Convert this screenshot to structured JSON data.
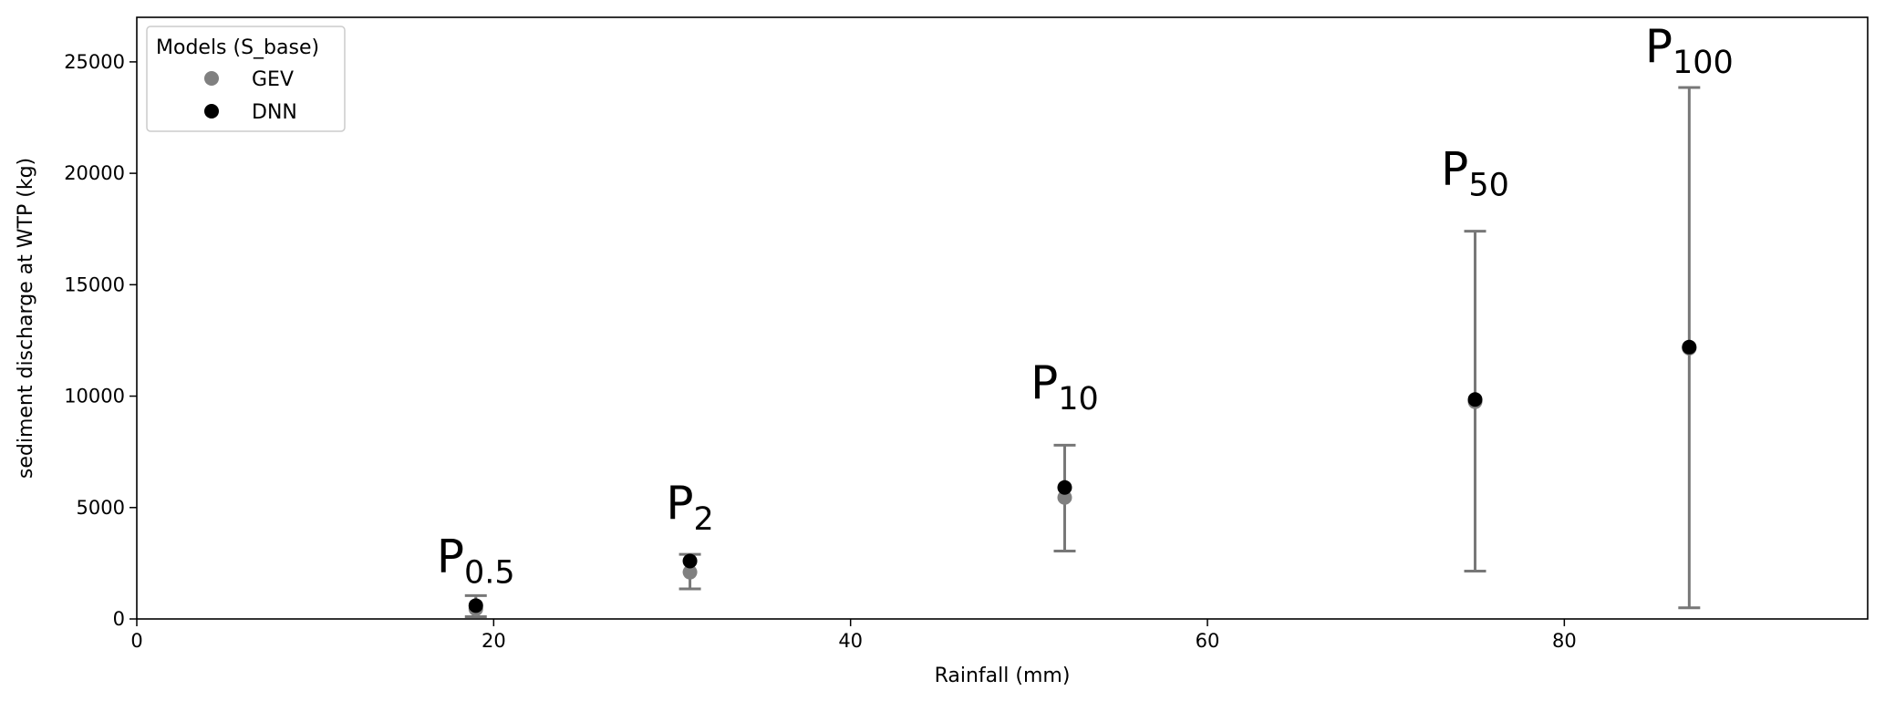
{
  "chart_data": {
    "type": "scatter",
    "xlabel": "Rainfall (mm)",
    "ylabel": "sediment discharge at WTP (kg)",
    "xlim": [
      0,
      97
    ],
    "ylim": [
      0,
      27000
    ],
    "x_ticks": [
      0,
      20,
      40,
      60,
      80
    ],
    "y_ticks": [
      0,
      5000,
      10000,
      15000,
      20000,
      25000
    ],
    "grid": false,
    "legend": {
      "title": "Models (S_base)",
      "placement": "top-left",
      "entries": [
        {
          "label": "GEV",
          "color": "#808080"
        },
        {
          "label": "DNN",
          "color": "#000000"
        }
      ]
    },
    "series": [
      {
        "name": "GEV",
        "color": "#808080",
        "points": [
          {
            "x": 19,
            "y": 450
          },
          {
            "x": 31,
            "y": 2100
          },
          {
            "x": 52,
            "y": 5450
          },
          {
            "x": 75,
            "y": 9750
          },
          {
            "x": 87,
            "y": 12150
          }
        ]
      },
      {
        "name": "DNN",
        "color": "#000000",
        "points": [
          {
            "x": 19,
            "y": 600
          },
          {
            "x": 31,
            "y": 2600
          },
          {
            "x": 52,
            "y": 5900
          },
          {
            "x": 75,
            "y": 9850
          },
          {
            "x": 87,
            "y": 12200
          }
        ]
      }
    ],
    "error_bars": [
      {
        "x": 19,
        "low": 100,
        "high": 1050
      },
      {
        "x": 31,
        "low": 1350,
        "high": 2900
      },
      {
        "x": 52,
        "low": 3050,
        "high": 7800
      },
      {
        "x": 75,
        "low": 2150,
        "high": 17400
      },
      {
        "x": 87,
        "low": 500,
        "high": 23850
      }
    ],
    "error_bar_color": "#777777",
    "annotations": [
      {
        "main": "P",
        "sub": "0.5",
        "x": 19,
        "y": 2100
      },
      {
        "main": "P",
        "sub": "2",
        "x": 31,
        "y": 4500
      },
      {
        "main": "P",
        "sub": "10",
        "x": 52,
        "y": 9900
      },
      {
        "main": "P",
        "sub": "50",
        "x": 75,
        "y": 19500
      },
      {
        "main": "P",
        "sub": "100",
        "x": 87,
        "y": 25000
      }
    ]
  }
}
